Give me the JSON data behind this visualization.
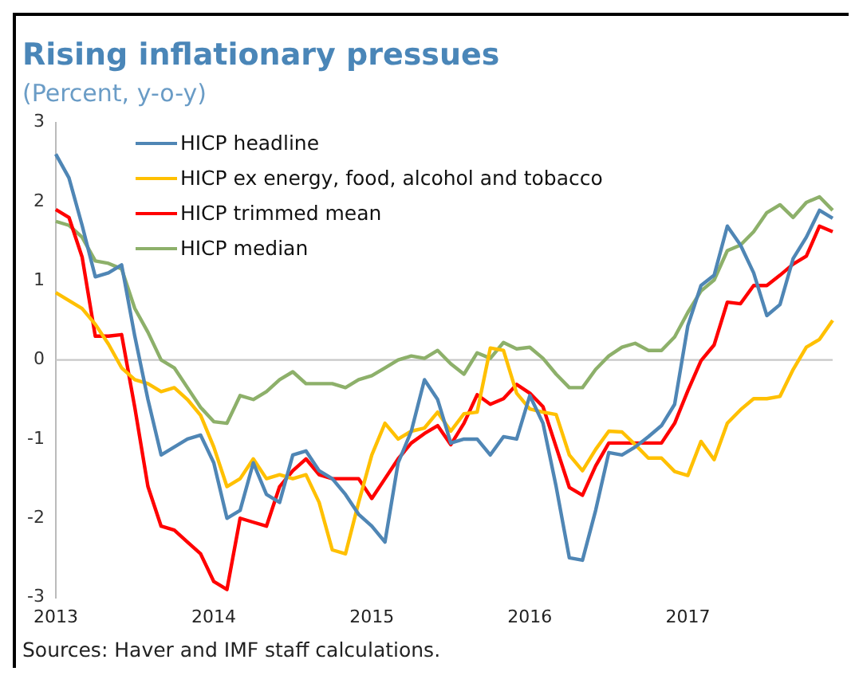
{
  "chart_data": {
    "type": "line",
    "title": "Rising inflationary pressues",
    "subtitle": "(Percent, y-o-y)",
    "annotations": [
      "Sources: Haver and IMF staff calculations."
    ],
    "categories": [
      "2013",
      null,
      null,
      null,
      null,
      null,
      null,
      null,
      null,
      null,
      null,
      null,
      "2014",
      null,
      null,
      null,
      null,
      null,
      null,
      null,
      null,
      null,
      null,
      null,
      "2015",
      null,
      null,
      null,
      null,
      null,
      null,
      null,
      null,
      null,
      null,
      null,
      "2016",
      null,
      null,
      null,
      null,
      null,
      null,
      null,
      null,
      null,
      null,
      null,
      "2017",
      null,
      null,
      null,
      null,
      null,
      null,
      null,
      null,
      null,
      null,
      null
    ],
    "ylim": [
      -3,
      3
    ],
    "yticks": [
      -3,
      -2,
      -1,
      0,
      1,
      2,
      3
    ],
    "grid": false,
    "ref_lines": [
      {
        "axis": "y",
        "value": 0,
        "color": "#c8c8c8"
      }
    ],
    "legend": "top left",
    "marker": "none",
    "line_style": "solid",
    "series": [
      {
        "name": "HICP headline",
        "color": "#4f86b5",
        "values": [
          2.6,
          2.3,
          1.7,
          1.05,
          1.1,
          1.2,
          0.3,
          -0.5,
          -1.2,
          -1.1,
          -1.0,
          -0.95,
          -1.3,
          -2.0,
          -1.9,
          -1.3,
          -1.7,
          -1.8,
          -1.2,
          -1.15,
          -1.4,
          -1.5,
          -1.7,
          -1.95,
          -2.1,
          -2.3,
          -1.3,
          -0.9,
          -0.25,
          -0.5,
          -1.05,
          -1.0,
          -1.0,
          -1.2,
          -0.97,
          -1.0,
          -0.45,
          -0.8,
          -1.6,
          -2.5,
          -2.53,
          -1.9,
          -1.17,
          -1.2,
          -1.1,
          -0.97,
          -0.83,
          -0.56,
          0.43,
          0.94,
          1.07,
          1.69,
          1.45,
          1.1,
          0.56,
          0.7,
          1.28,
          1.55,
          1.89,
          1.79
        ]
      },
      {
        "name": "HICP ex energy, food, alcohol and tobacco",
        "color": "#ffc000",
        "values": [
          0.85,
          0.75,
          0.65,
          0.45,
          0.2,
          -0.1,
          -0.25,
          -0.3,
          -0.4,
          -0.35,
          -0.5,
          -0.7,
          -1.1,
          -1.6,
          -1.5,
          -1.25,
          -1.5,
          -1.45,
          -1.5,
          -1.45,
          -1.8,
          -2.4,
          -2.45,
          -1.8,
          -1.2,
          -0.8,
          -1.0,
          -0.9,
          -0.86,
          -0.66,
          -0.9,
          -0.68,
          -0.66,
          0.15,
          0.12,
          -0.42,
          -0.62,
          -0.66,
          -0.69,
          -1.2,
          -1.4,
          -1.13,
          -0.9,
          -0.91,
          -1.07,
          -1.24,
          -1.24,
          -1.41,
          -1.46,
          -1.03,
          -1.26,
          -0.8,
          -0.63,
          -0.49,
          -0.49,
          -0.46,
          -0.12,
          0.16,
          0.26,
          0.5
        ]
      },
      {
        "name": "HICP trimmed mean",
        "color": "#ff0000",
        "values": [
          1.9,
          1.8,
          1.3,
          0.3,
          0.3,
          0.32,
          -0.6,
          -1.6,
          -2.1,
          -2.15,
          -2.3,
          -2.45,
          -2.8,
          -2.9,
          -2.0,
          -2.05,
          -2.1,
          -1.6,
          -1.4,
          -1.25,
          -1.45,
          -1.5,
          -1.5,
          -1.5,
          -1.75,
          -1.5,
          -1.25,
          -1.05,
          -0.93,
          -0.83,
          -1.07,
          -0.8,
          -0.44,
          -0.56,
          -0.49,
          -0.31,
          -0.42,
          -0.59,
          -1.1,
          -1.61,
          -1.71,
          -1.34,
          -1.05,
          -1.05,
          -1.05,
          -1.05,
          -1.05,
          -0.8,
          -0.39,
          -0.01,
          0.19,
          0.73,
          0.71,
          0.94,
          0.94,
          1.07,
          1.21,
          1.31,
          1.69,
          1.62
        ]
      },
      {
        "name": "HICP median",
        "color": "#8db06a",
        "values": [
          1.75,
          1.7,
          1.55,
          1.25,
          1.22,
          1.15,
          0.65,
          0.35,
          0.0,
          -0.1,
          -0.35,
          -0.6,
          -0.78,
          -0.8,
          -0.45,
          -0.5,
          -0.4,
          -0.25,
          -0.15,
          -0.3,
          -0.3,
          -0.3,
          -0.35,
          -0.25,
          -0.2,
          -0.1,
          0.0,
          0.05,
          0.02,
          0.12,
          -0.05,
          -0.18,
          0.09,
          0.02,
          0.22,
          0.14,
          0.16,
          0.02,
          -0.18,
          -0.35,
          -0.35,
          -0.12,
          0.05,
          0.16,
          0.21,
          0.12,
          0.12,
          0.29,
          0.6,
          0.87,
          1.01,
          1.38,
          1.45,
          1.62,
          1.86,
          1.96,
          1.8,
          1.99,
          2.06,
          1.89
        ]
      }
    ]
  }
}
